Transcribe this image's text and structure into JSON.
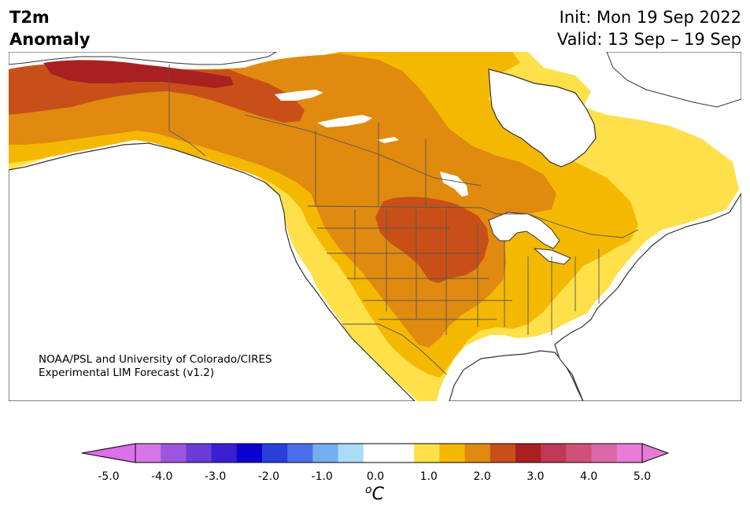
{
  "header": {
    "title_line1": "T2m",
    "title_line2": "Anomaly",
    "init": "Init: Mon 19 Sep 2022",
    "valid": "Valid: 13 Sep – 19 Sep"
  },
  "credit": {
    "line1": "NOAA/PSL and University of Colorado/CIRES",
    "line2": "Experimental LIM Forecast (v1.2)"
  },
  "colorbar": {
    "unit_base": "C",
    "unit_prefix": "o",
    "tick_labels": [
      "-5.0",
      "-4.0",
      "-3.0",
      "-2.0",
      "-1.0",
      "0.0",
      "1.0",
      "2.0",
      "3.0",
      "4.0",
      "5.0"
    ],
    "colors": [
      "#d675e8",
      "#9b55de",
      "#6a3cd8",
      "#3a1fd0",
      "#0a00d0",
      "#2a3ed8",
      "#4c6ee8",
      "#74aef0",
      "#aadcf8",
      "#ffffff",
      "#ffffff",
      "#fde04a",
      "#f5b800",
      "#e08a10",
      "#c85018",
      "#aa2020",
      "#c03855",
      "#d05078",
      "#dc68a8",
      "#e87ad8"
    ],
    "under_color": "#dc70e8",
    "over_color": "#e87ad8"
  },
  "map": {
    "variable": "2-m temperature anomaly",
    "units": "°C",
    "palette": {
      "land_neutral": "#ffffff",
      "anom_0_5_1_0": "#fde04a",
      "anom_1_0_1_5": "#f5b800",
      "anom_1_5_2_0": "#e08a10",
      "anom_2_0_2_5": "#c85018",
      "anom_2_5_3_0": "#aa2020",
      "coastline": "#333333",
      "borders": "#555555"
    }
  }
}
